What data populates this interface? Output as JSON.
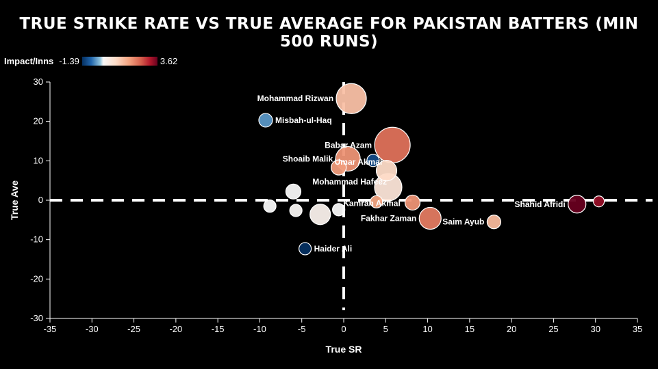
{
  "chart_data": {
    "type": "scatter",
    "title": "TRUE STRIKE RATE VS TRUE AVERAGE FOR PAKISTAN BATTERS (MIN 500 RUNS)",
    "xlabel": "True SR",
    "ylabel": "True Ave",
    "xlim": [
      -35,
      35
    ],
    "ylim": [
      -30,
      30
    ],
    "xticks": [
      -35,
      -30,
      -25,
      -20,
      -15,
      -10,
      -5,
      0,
      5,
      10,
      15,
      20,
      25,
      30,
      35
    ],
    "yticks": [
      -30,
      -20,
      -10,
      0,
      10,
      20,
      30
    ],
    "reference_lines": {
      "x": 0,
      "y": 0
    },
    "color_scale": {
      "title": "Impact/Inns",
      "min": -1.39,
      "max": 3.62,
      "min_label": "-1.39",
      "max_label": "3.62"
    },
    "points": [
      {
        "name": "Mohammad Rizwan",
        "x": 0.9,
        "y": 25.8,
        "impact": 1.0,
        "size": 22,
        "label": "Mohammad Rizwan"
      },
      {
        "name": "Misbah-ul-Haq",
        "x": -9.3,
        "y": 20.3,
        "impact": -0.8,
        "size": 10,
        "label": "Misbah-ul-Haq"
      },
      {
        "name": "Babar Azam",
        "x": 5.8,
        "y": 14.0,
        "impact": 2.0,
        "size": 26,
        "label": "Babar Azam"
      },
      {
        "name": "Shoaib Malik",
        "x": 0.5,
        "y": 10.5,
        "impact": 1.6,
        "size": 18,
        "label": "Shoaib Malik"
      },
      {
        "name": "Unlabeled batter (blue)",
        "x": 3.5,
        "y": 10.1,
        "impact": -1.2,
        "size": 9,
        "label": ""
      },
      {
        "name": "Umar Akmal",
        "x": -0.6,
        "y": 8.3,
        "impact": 1.5,
        "size": 11,
        "label": "Umar Akmal"
      },
      {
        "name": "Unlabeled batter (pink)",
        "x": 5.1,
        "y": 7.5,
        "impact": 0.6,
        "size": 15,
        "label": ""
      },
      {
        "name": "Mohammad Hafeez",
        "x": 5.3,
        "y": 3.3,
        "impact": 0.4,
        "size": 20,
        "label": "Mohammad Hafeez"
      },
      {
        "name": "Unlabeled batter (white)",
        "x": -6.0,
        "y": 2.2,
        "impact": 0.0,
        "size": 11,
        "label": ""
      },
      {
        "name": "Kamran Akmal",
        "x": 3.9,
        "y": -0.4,
        "impact": 1.4,
        "size": 9,
        "label": "Kamran Akmal"
      },
      {
        "name": "Unlabeled batter (salmon)",
        "x": 8.2,
        "y": -0.6,
        "impact": 1.6,
        "size": 11,
        "label": ""
      },
      {
        "name": "Fakhar Zaman",
        "x": 10.3,
        "y": -4.6,
        "impact": 1.9,
        "size": 16,
        "label": "Fakhar Zaman"
      },
      {
        "name": "Saim Ayub",
        "x": 17.9,
        "y": -5.5,
        "impact": 1.1,
        "size": 10,
        "label": "Saim Ayub"
      },
      {
        "name": "Shahid Afridi",
        "x": 27.8,
        "y": -1.0,
        "impact": 3.62,
        "size": 13,
        "label": "Shahid Afridi"
      },
      {
        "name": "Unlabeled batter (maroon)",
        "x": 30.4,
        "y": -0.3,
        "impact": 3.2,
        "size": 8,
        "label": ""
      },
      {
        "name": "Unlabeled batter (grey 1)",
        "x": -8.8,
        "y": -1.5,
        "impact": 0.0,
        "size": 9,
        "label": ""
      },
      {
        "name": "Unlabeled batter (grey 2)",
        "x": -5.7,
        "y": -2.6,
        "impact": 0.05,
        "size": 9,
        "label": ""
      },
      {
        "name": "Unlabeled batter (light pink)",
        "x": -2.8,
        "y": -3.6,
        "impact": 0.15,
        "size": 15,
        "label": ""
      },
      {
        "name": "Unlabeled batter (grey 3)",
        "x": -0.6,
        "y": -2.4,
        "impact": 0.0,
        "size": 9,
        "label": ""
      },
      {
        "name": "Haider Ali",
        "x": -4.6,
        "y": -12.3,
        "impact": -1.39,
        "size": 9,
        "label": "Haider Ali"
      }
    ]
  }
}
